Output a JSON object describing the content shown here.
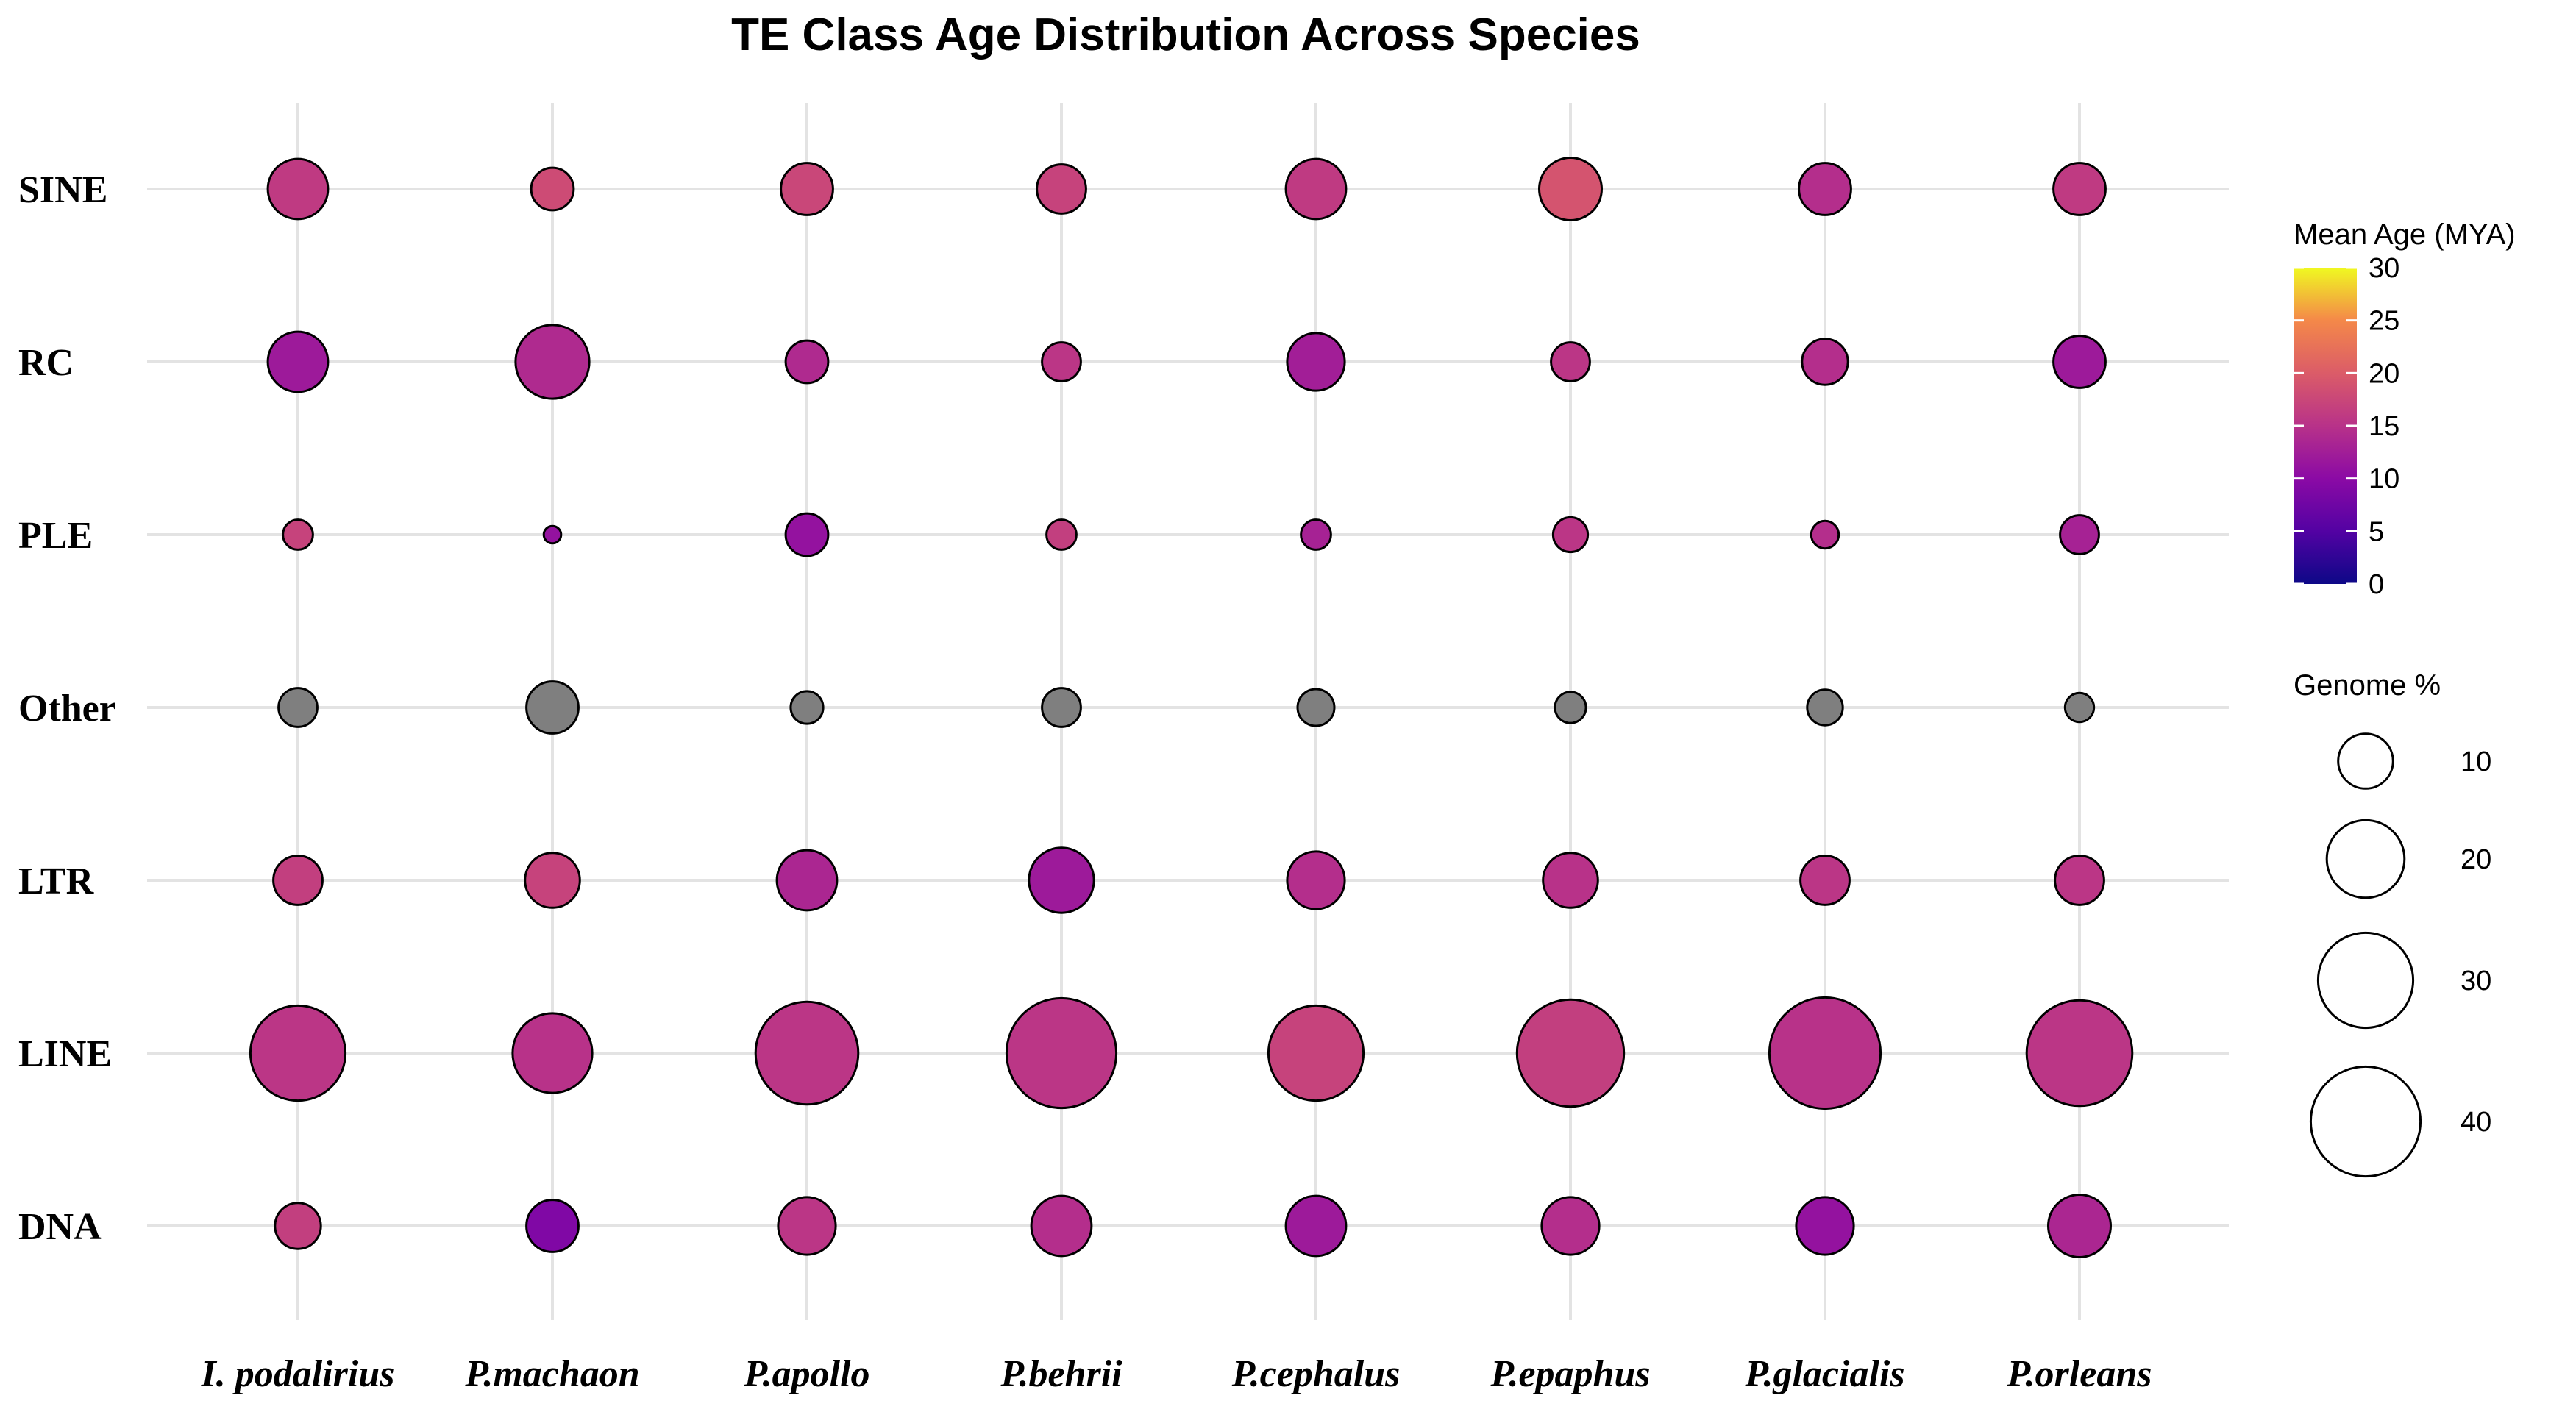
{
  "chart_data": {
    "type": "scatter",
    "title": "TE Class Age Distribution Across Species",
    "xlabel": "",
    "ylabel": "",
    "x_categories": [
      "I. podalirius",
      "P.machaon",
      "P.apollo",
      "P.behrii",
      "P.cephalus",
      "P.epaphus",
      "P.glacialis",
      "P.orleans"
    ],
    "y_categories": [
      "SINE",
      "RC",
      "PLE",
      "Other",
      "LTR",
      "LINE",
      "DNA"
    ],
    "color_legend": {
      "title": "Mean Age (MYA)",
      "ticks": [
        "0",
        "5",
        "10",
        "15",
        "20",
        "25",
        "30"
      ],
      "range": [
        0,
        30
      ],
      "palette": "plasma"
    },
    "size_legend": {
      "title": "Genome %",
      "values": [
        10,
        20,
        30,
        40
      ],
      "labels": [
        "10",
        "20",
        "30",
        "40"
      ]
    },
    "grey_color": "#7f7f7f",
    "points": [
      {
        "species": "I. podalirius",
        "class": "SINE",
        "genome_pct": 12,
        "age": 16
      },
      {
        "species": "P.machaon",
        "class": "SINE",
        "genome_pct": 6,
        "age": 18
      },
      {
        "species": "P.apollo",
        "class": "SINE",
        "genome_pct": 9,
        "age": 17.5
      },
      {
        "species": "P.behrii",
        "class": "SINE",
        "genome_pct": 8,
        "age": 17
      },
      {
        "species": "P.cephalus",
        "class": "SINE",
        "genome_pct": 12,
        "age": 16
      },
      {
        "species": "P.epaphus",
        "class": "SINE",
        "genome_pct": 13,
        "age": 19
      },
      {
        "species": "P.glacialis",
        "class": "SINE",
        "genome_pct": 9,
        "age": 14.5
      },
      {
        "species": "P.orleans",
        "class": "SINE",
        "genome_pct": 9,
        "age": 16
      },
      {
        "species": "I. podalirius",
        "class": "RC",
        "genome_pct": 12,
        "age": 12
      },
      {
        "species": "P.machaon",
        "class": "RC",
        "genome_pct": 18,
        "age": 14
      },
      {
        "species": "P.apollo",
        "class": "RC",
        "genome_pct": 6,
        "age": 14
      },
      {
        "species": "P.behrii",
        "class": "RC",
        "genome_pct": 5,
        "age": 15.5
      },
      {
        "species": "P.cephalus",
        "class": "RC",
        "genome_pct": 11,
        "age": 12.5
      },
      {
        "species": "P.epaphus",
        "class": "RC",
        "genome_pct": 5,
        "age": 15.5
      },
      {
        "species": "P.glacialis",
        "class": "RC",
        "genome_pct": 7,
        "age": 14.5
      },
      {
        "species": "P.orleans",
        "class": "RC",
        "genome_pct": 9,
        "age": 12
      },
      {
        "species": "I. podalirius",
        "class": "PLE",
        "genome_pct": 3,
        "age": 17
      },
      {
        "species": "P.machaon",
        "class": "PLE",
        "genome_pct": 1,
        "age": 11
      },
      {
        "species": "P.apollo",
        "class": "PLE",
        "genome_pct": 6,
        "age": 11
      },
      {
        "species": "P.behrii",
        "class": "PLE",
        "genome_pct": 3,
        "age": 16.5
      },
      {
        "species": "P.cephalus",
        "class": "PLE",
        "genome_pct": 3,
        "age": 13
      },
      {
        "species": "P.epaphus",
        "class": "PLE",
        "genome_pct": 4,
        "age": 15.5
      },
      {
        "species": "P.glacialis",
        "class": "PLE",
        "genome_pct": 2.5,
        "age": 14.5
      },
      {
        "species": "P.orleans",
        "class": "PLE",
        "genome_pct": 5,
        "age": 13
      },
      {
        "species": "I. podalirius",
        "class": "Other",
        "genome_pct": 5,
        "age": null
      },
      {
        "species": "P.machaon",
        "class": "Other",
        "genome_pct": 9,
        "age": null
      },
      {
        "species": "P.apollo",
        "class": "Other",
        "genome_pct": 3.5,
        "age": null
      },
      {
        "species": "P.behrii",
        "class": "Other",
        "genome_pct": 5,
        "age": null
      },
      {
        "species": "P.cephalus",
        "class": "Other",
        "genome_pct": 4.5,
        "age": null
      },
      {
        "species": "P.epaphus",
        "class": "Other",
        "genome_pct": 3.2,
        "age": null
      },
      {
        "species": "P.glacialis",
        "class": "Other",
        "genome_pct": 4.2,
        "age": null
      },
      {
        "species": "P.orleans",
        "class": "Other",
        "genome_pct": 2.8,
        "age": null
      },
      {
        "species": "I. podalirius",
        "class": "LTR",
        "genome_pct": 8,
        "age": 16.5
      },
      {
        "species": "P.machaon",
        "class": "LTR",
        "genome_pct": 10,
        "age": 17
      },
      {
        "species": "P.apollo",
        "class": "LTR",
        "genome_pct": 12,
        "age": 13.5
      },
      {
        "species": "P.behrii",
        "class": "LTR",
        "genome_pct": 14,
        "age": 12
      },
      {
        "species": "P.cephalus",
        "class": "LTR",
        "genome_pct": 11,
        "age": 14.5
      },
      {
        "species": "P.epaphus",
        "class": "LTR",
        "genome_pct": 10,
        "age": 15
      },
      {
        "species": "P.glacialis",
        "class": "LTR",
        "genome_pct": 8,
        "age": 15.5
      },
      {
        "species": "P.orleans",
        "class": "LTR",
        "genome_pct": 8,
        "age": 15.5
      },
      {
        "species": "I. podalirius",
        "class": "LINE",
        "genome_pct": 30,
        "age": 15.5
      },
      {
        "species": "P.machaon",
        "class": "LINE",
        "genome_pct": 21,
        "age": 15
      },
      {
        "species": "P.apollo",
        "class": "LINE",
        "genome_pct": 35,
        "age": 15.5
      },
      {
        "species": "P.behrii",
        "class": "LINE",
        "genome_pct": 40,
        "age": 15.5
      },
      {
        "species": "P.cephalus",
        "class": "LINE",
        "genome_pct": 30,
        "age": 17
      },
      {
        "species": "P.epaphus",
        "class": "LINE",
        "genome_pct": 38,
        "age": 16.5
      },
      {
        "species": "P.glacialis",
        "class": "LINE",
        "genome_pct": 41,
        "age": 15
      },
      {
        "species": "P.orleans",
        "class": "LINE",
        "genome_pct": 37,
        "age": 15.5
      },
      {
        "species": "I. podalirius",
        "class": "DNA",
        "genome_pct": 7,
        "age": 16.5
      },
      {
        "species": "P.machaon",
        "class": "DNA",
        "genome_pct": 9,
        "age": 9
      },
      {
        "species": "P.apollo",
        "class": "DNA",
        "genome_pct": 11,
        "age": 15.5
      },
      {
        "species": "P.behrii",
        "class": "DNA",
        "genome_pct": 12,
        "age": 14.5
      },
      {
        "species": "P.cephalus",
        "class": "DNA",
        "genome_pct": 12,
        "age": 12
      },
      {
        "species": "P.epaphus",
        "class": "DNA",
        "genome_pct": 11,
        "age": 14.5
      },
      {
        "species": "P.glacialis",
        "class": "DNA",
        "genome_pct": 11,
        "age": 11
      },
      {
        "species": "P.orleans",
        "class": "DNA",
        "genome_pct": 13,
        "age": 13.5
      }
    ]
  }
}
